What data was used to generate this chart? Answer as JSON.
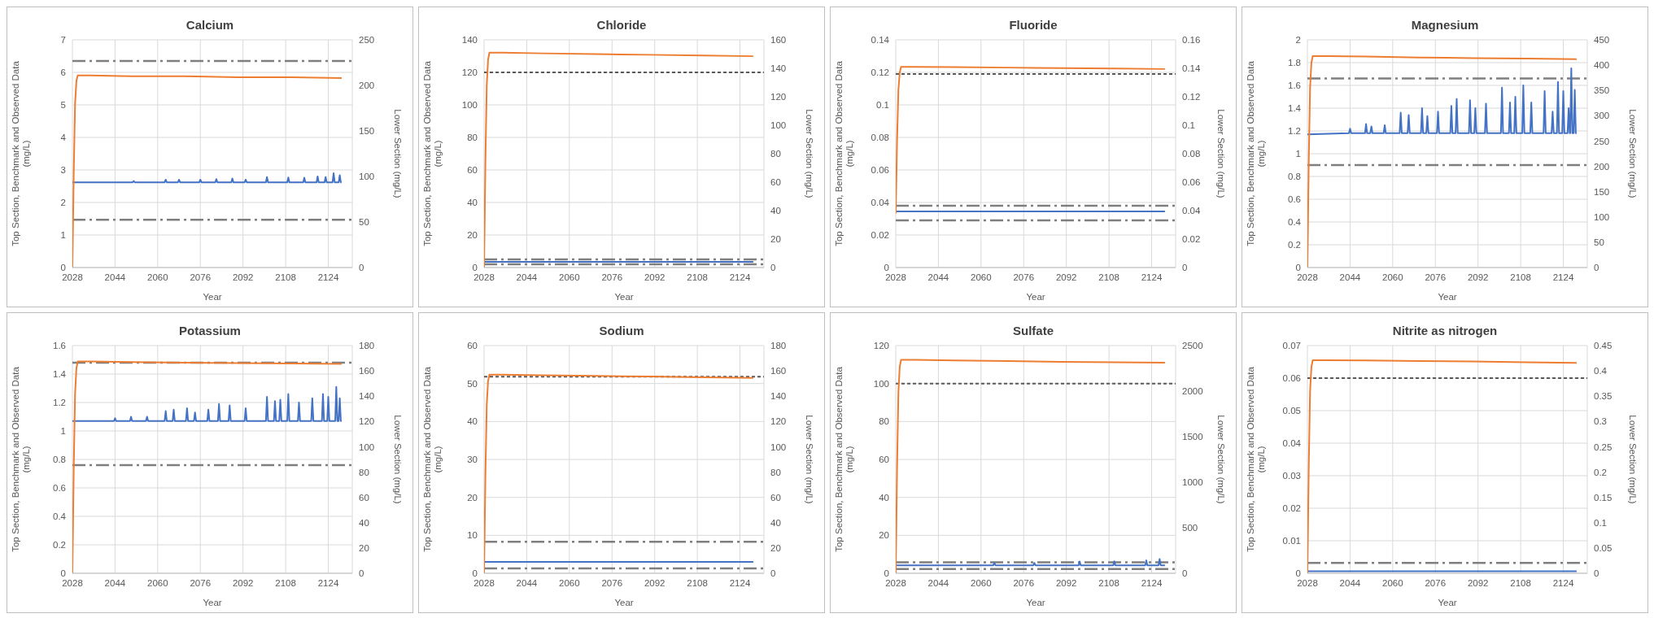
{
  "chart_data": [
    {
      "type": "line",
      "title": "Calcium",
      "xlabel": "Year",
      "ylabel": "Top Section, Benchmark and Observed Data (mg/L)",
      "y2label": "Lower Section (mg/L)",
      "xlim": [
        2028,
        2133
      ],
      "xticks": [
        2028,
        2044,
        2060,
        2076,
        2092,
        2108,
        2124
      ],
      "ylim": [
        0,
        7
      ],
      "yticks": [
        0,
        1,
        2,
        3,
        4,
        5,
        6,
        7
      ],
      "y2lim": [
        0,
        250
      ],
      "y2ticks": [
        0,
        50,
        100,
        150,
        200,
        250
      ],
      "grid": true,
      "series": [
        {
          "color": "#4472c4",
          "x": [
            2028,
            2050.6,
            2051,
            2051.4,
            2062.6,
            2063,
            2063.4,
            2067.6,
            2068,
            2068.4,
            2075.6,
            2076,
            2076.4,
            2081.6,
            2082,
            2082.4,
            2087.6,
            2088,
            2088.4,
            2092.6,
            2093,
            2093.4,
            2100.6,
            2101,
            2101.4,
            2108.6,
            2109,
            2109.4,
            2114.6,
            2115,
            2115.4,
            2119.6,
            2120,
            2120.4,
            2122.6,
            2123,
            2123.4,
            2125.6,
            2126,
            2126.4,
            2127.9,
            2128.3,
            2128.7,
            2129
          ],
          "values": [
            2.62,
            2.62,
            2.66,
            2.62,
            2.62,
            2.7,
            2.62,
            2.62,
            2.7,
            2.62,
            2.62,
            2.7,
            2.62,
            2.62,
            2.72,
            2.62,
            2.62,
            2.74,
            2.62,
            2.62,
            2.7,
            2.62,
            2.62,
            2.78,
            2.62,
            2.62,
            2.77,
            2.62,
            2.62,
            2.76,
            2.62,
            2.62,
            2.8,
            2.62,
            2.62,
            2.78,
            2.62,
            2.62,
            2.9,
            2.62,
            2.62,
            2.84,
            2.62,
            2.62
          ]
        },
        {
          "color": "#ed7d31",
          "axis": "y2",
          "x": [
            2028,
            2028.5,
            2029,
            2029.5,
            2030,
            2035,
            2050,
            2070,
            2090,
            2110,
            2129
          ],
          "values": [
            0,
            105,
            180,
            205,
            211,
            211,
            210,
            210,
            209,
            209,
            208
          ]
        }
      ],
      "ref_lines": [
        {
          "axis": "y",
          "value": 6.35,
          "line_style": "dashed",
          "color": "#7f7f7f"
        },
        {
          "axis": "y",
          "value": 1.47,
          "line_style": "dashed",
          "color": "#7f7f7f"
        }
      ]
    },
    {
      "type": "line",
      "title": "Chloride",
      "xlabel": "Year",
      "ylabel": "Top Section, Benchmark and Observed Data (mg/L)",
      "y2label": "Lower Section (mg/L)",
      "xlim": [
        2028,
        2133
      ],
      "xticks": [
        2028,
        2044,
        2060,
        2076,
        2092,
        2108,
        2124
      ],
      "ylim": [
        0,
        140
      ],
      "yticks": [
        0,
        20,
        40,
        60,
        80,
        100,
        120,
        140
      ],
      "y2lim": [
        0,
        160
      ],
      "y2ticks": [
        0,
        20,
        40,
        60,
        80,
        100,
        120,
        140,
        160
      ],
      "grid": true,
      "series": [
        {
          "color": "#4472c4",
          "x": [
            2028,
            2129
          ],
          "values": [
            3.5,
            3.5
          ]
        },
        {
          "color": "#ed7d31",
          "axis": "y2",
          "x": [
            2028,
            2028.5,
            2029,
            2029.5,
            2030,
            2035,
            2050,
            2070,
            2090,
            2110,
            2129
          ],
          "values": [
            0,
            75,
            128,
            146,
            151,
            151,
            150.5,
            150,
            149.5,
            149,
            148.5
          ]
        }
      ],
      "ref_lines": [
        {
          "axis": "y",
          "value": 120,
          "line_style": "dotted",
          "color": "#595959"
        },
        {
          "axis": "y",
          "value": 5,
          "line_style": "dashed",
          "color": "#7f7f7f"
        },
        {
          "axis": "y",
          "value": 2,
          "line_style": "dashed",
          "color": "#7f7f7f"
        }
      ]
    },
    {
      "type": "line",
      "title": "Fluoride",
      "xlabel": "Year",
      "ylabel": "Top Section, Benchmark and Observed Data (mg/L)",
      "y2label": "Lower Section (mg/L)",
      "xlim": [
        2028,
        2133
      ],
      "xticks": [
        2028,
        2044,
        2060,
        2076,
        2092,
        2108,
        2124
      ],
      "ylim": [
        0,
        0.14
      ],
      "yticks": [
        0,
        0.02,
        0.04,
        0.06,
        0.08,
        0.1,
        0.12,
        0.14
      ],
      "y2lim": [
        0,
        0.16
      ],
      "y2ticks": [
        0,
        0.02,
        0.04,
        0.06,
        0.08,
        0.1,
        0.12,
        0.14,
        0.16
      ],
      "grid": true,
      "series": [
        {
          "color": "#4472c4",
          "x": [
            2028,
            2129
          ],
          "values": [
            0.0345,
            0.0345
          ]
        },
        {
          "color": "#ed7d31",
          "axis": "y2",
          "x": [
            2028,
            2028.5,
            2029,
            2029.5,
            2030,
            2035,
            2050,
            2070,
            2090,
            2110,
            2129
          ],
          "values": [
            0.038,
            0.09,
            0.125,
            0.137,
            0.141,
            0.141,
            0.1408,
            0.1405,
            0.1402,
            0.1398,
            0.1395
          ]
        }
      ],
      "ref_lines": [
        {
          "axis": "y",
          "value": 0.119,
          "line_style": "dotted",
          "color": "#595959"
        },
        {
          "axis": "y",
          "value": 0.038,
          "line_style": "dashed",
          "color": "#7f7f7f"
        },
        {
          "axis": "y",
          "value": 0.029,
          "line_style": "dashed",
          "color": "#7f7f7f"
        }
      ]
    },
    {
      "type": "line",
      "title": "Magnesium",
      "xlabel": "Year",
      "ylabel": "Top Section, Benchmark and Observed Data (mg/L)",
      "y2label": "Lower Section (mg/L)",
      "xlim": [
        2028,
        2133
      ],
      "xticks": [
        2028,
        2044,
        2060,
        2076,
        2092,
        2108,
        2124
      ],
      "ylim": [
        0,
        2
      ],
      "yticks": [
        0,
        0.2,
        0.4,
        0.6,
        0.8,
        1,
        1.2,
        1.4,
        1.6,
        1.8,
        2
      ],
      "y2lim": [
        0,
        450
      ],
      "y2ticks": [
        0,
        50,
        100,
        150,
        200,
        250,
        300,
        350,
        400,
        450
      ],
      "grid": true,
      "series": [
        {
          "color": "#4472c4",
          "x": [
            2028,
            2043.6,
            2044,
            2044.4,
            2049.6,
            2050,
            2050.4,
            2051.6,
            2052,
            2052.4,
            2056.6,
            2057,
            2057.4,
            2062.6,
            2063,
            2063.4,
            2065.6,
            2066,
            2066.4,
            2070.6,
            2071,
            2071.4,
            2072.6,
            2073,
            2073.4,
            2076.6,
            2077,
            2077.4,
            2081.6,
            2082,
            2082.4,
            2083.6,
            2084,
            2084.4,
            2088.6,
            2089,
            2089.4,
            2090.6,
            2091,
            2091.4,
            2094.6,
            2095,
            2095.4,
            2100.6,
            2101,
            2101.4,
            2103.6,
            2104,
            2104.4,
            2105.6,
            2106,
            2106.4,
            2108.6,
            2109,
            2109.4,
            2111.6,
            2112,
            2112.4,
            2116.6,
            2117,
            2117.4,
            2119.6,
            2120,
            2120.4,
            2121.6,
            2122,
            2122.4,
            2123.6,
            2124,
            2124.4,
            2125.6,
            2126,
            2126.4,
            2126.6,
            2127,
            2127.4,
            2127.9,
            2128.3,
            2128.7,
            2129
          ],
          "values": [
            1.17,
            1.18,
            1.22,
            1.18,
            1.18,
            1.26,
            1.18,
            1.18,
            1.24,
            1.18,
            1.18,
            1.25,
            1.18,
            1.18,
            1.36,
            1.18,
            1.18,
            1.34,
            1.18,
            1.18,
            1.4,
            1.18,
            1.18,
            1.33,
            1.18,
            1.18,
            1.37,
            1.18,
            1.18,
            1.42,
            1.18,
            1.18,
            1.48,
            1.18,
            1.18,
            1.47,
            1.18,
            1.18,
            1.4,
            1.18,
            1.18,
            1.44,
            1.18,
            1.18,
            1.58,
            1.18,
            1.18,
            1.45,
            1.18,
            1.18,
            1.5,
            1.18,
            1.18,
            1.6,
            1.18,
            1.18,
            1.45,
            1.18,
            1.18,
            1.55,
            1.18,
            1.18,
            1.37,
            1.18,
            1.18,
            1.63,
            1.18,
            1.18,
            1.55,
            1.18,
            1.18,
            1.4,
            1.18,
            1.18,
            1.75,
            1.18,
            1.18,
            1.56,
            1.18,
            1.18
          ]
        },
        {
          "color": "#ed7d31",
          "axis": "y2",
          "x": [
            2028,
            2028.5,
            2029,
            2029.5,
            2030,
            2035,
            2050,
            2070,
            2090,
            2110,
            2129
          ],
          "values": [
            0,
            210,
            355,
            405,
            418,
            418,
            417,
            415,
            414,
            413,
            412
          ]
        }
      ],
      "ref_lines": [
        {
          "axis": "y",
          "value": 1.66,
          "line_style": "dashed",
          "color": "#7f7f7f"
        },
        {
          "axis": "y",
          "value": 0.9,
          "line_style": "dashed",
          "color": "#7f7f7f"
        }
      ]
    },
    {
      "type": "line",
      "title": "Potassium",
      "xlabel": "Year",
      "ylabel": "Top Section, Benchmark and Observed Data (mg/L)",
      "y2label": "Lower Section (mg/L)",
      "xlim": [
        2028,
        2133
      ],
      "xticks": [
        2028,
        2044,
        2060,
        2076,
        2092,
        2108,
        2124
      ],
      "ylim": [
        0,
        1.6
      ],
      "yticks": [
        0,
        0.2,
        0.4,
        0.6,
        0.8,
        1,
        1.2,
        1.4,
        1.6
      ],
      "y2lim": [
        0,
        180
      ],
      "y2ticks": [
        0,
        20,
        40,
        60,
        80,
        100,
        120,
        140,
        160,
        180
      ],
      "grid": true,
      "series": [
        {
          "color": "#4472c4",
          "x": [
            2028,
            2043.6,
            2044,
            2044.4,
            2049.6,
            2050,
            2050.4,
            2055.6,
            2056,
            2056.4,
            2062.6,
            2063,
            2063.4,
            2065.6,
            2066,
            2066.4,
            2070.6,
            2071,
            2071.4,
            2073.6,
            2074,
            2074.4,
            2078.6,
            2079,
            2079.4,
            2082.6,
            2083,
            2083.4,
            2086.6,
            2087,
            2087.4,
            2092.6,
            2093,
            2093.4,
            2100.6,
            2101,
            2101.4,
            2103.6,
            2104,
            2104.4,
            2105.6,
            2106,
            2106.4,
            2108.6,
            2109,
            2109.4,
            2112.6,
            2113,
            2113.4,
            2117.6,
            2118,
            2118.4,
            2121.6,
            2122,
            2122.4,
            2123.6,
            2124,
            2124.4,
            2126.6,
            2127,
            2127.4,
            2127.9,
            2128.3,
            2128.7,
            2129
          ],
          "values": [
            1.07,
            1.07,
            1.09,
            1.07,
            1.07,
            1.1,
            1.07,
            1.07,
            1.1,
            1.07,
            1.07,
            1.14,
            1.07,
            1.07,
            1.15,
            1.07,
            1.07,
            1.16,
            1.07,
            1.07,
            1.13,
            1.07,
            1.07,
            1.15,
            1.07,
            1.07,
            1.19,
            1.07,
            1.07,
            1.18,
            1.07,
            1.07,
            1.16,
            1.07,
            1.07,
            1.24,
            1.07,
            1.07,
            1.21,
            1.07,
            1.07,
            1.22,
            1.07,
            1.07,
            1.26,
            1.07,
            1.07,
            1.2,
            1.07,
            1.07,
            1.23,
            1.07,
            1.07,
            1.26,
            1.07,
            1.07,
            1.24,
            1.07,
            1.07,
            1.31,
            1.07,
            1.07,
            1.23,
            1.07,
            1.07
          ]
        },
        {
          "color": "#ed7d31",
          "axis": "y2",
          "x": [
            2028,
            2028.5,
            2029,
            2029.5,
            2030,
            2035,
            2050,
            2070,
            2090,
            2110,
            2129
          ],
          "values": [
            0,
            84,
            142,
            162,
            167.5,
            167.5,
            167,
            166.5,
            166.2,
            165.8,
            165.5
          ]
        }
      ],
      "ref_lines": [
        {
          "axis": "y",
          "value": 1.48,
          "line_style": "dashed",
          "color": "#7f7f7f"
        },
        {
          "axis": "y",
          "value": 0.76,
          "line_style": "dashed",
          "color": "#7f7f7f"
        }
      ]
    },
    {
      "type": "line",
      "title": "Sodium",
      "xlabel": "Year",
      "ylabel": "Top Section, Benchmark and Observed Data (mg/L)",
      "y2label": "Lower Section (mg/L)",
      "xlim": [
        2028,
        2133
      ],
      "xticks": [
        2028,
        2044,
        2060,
        2076,
        2092,
        2108,
        2124
      ],
      "ylim": [
        0,
        60
      ],
      "yticks": [
        0,
        10,
        20,
        30,
        40,
        50,
        60
      ],
      "y2lim": [
        0,
        180
      ],
      "y2ticks": [
        0,
        20,
        40,
        60,
        80,
        100,
        120,
        140,
        160,
        180
      ],
      "grid": true,
      "series": [
        {
          "color": "#4472c4",
          "x": [
            2028,
            2129
          ],
          "values": [
            3,
            3
          ]
        },
        {
          "color": "#ed7d31",
          "axis": "y2",
          "x": [
            2028,
            2028.5,
            2029,
            2029.5,
            2030,
            2035,
            2050,
            2070,
            2090,
            2110,
            2129
          ],
          "values": [
            0,
            78,
            133,
            152,
            157,
            157,
            156.5,
            156,
            155.5,
            155,
            154.5
          ]
        }
      ],
      "ref_lines": [
        {
          "axis": "y",
          "value": 51.8,
          "line_style": "dotted",
          "color": "#595959"
        },
        {
          "axis": "y",
          "value": 8.3,
          "line_style": "dashed",
          "color": "#7f7f7f"
        },
        {
          "axis": "y",
          "value": 1.3,
          "line_style": "dashed",
          "color": "#7f7f7f"
        }
      ]
    },
    {
      "type": "line",
      "title": "Sulfate",
      "xlabel": "Year",
      "ylabel": "Top Section, Benchmark and Observed Data (mg/L)",
      "y2label": "Lower Section (mg/L)",
      "xlim": [
        2028,
        2133
      ],
      "xticks": [
        2028,
        2044,
        2060,
        2076,
        2092,
        2108,
        2124
      ],
      "ylim": [
        0,
        120
      ],
      "yticks": [
        0,
        20,
        40,
        60,
        80,
        100,
        120
      ],
      "y2lim": [
        0,
        2500
      ],
      "y2ticks": [
        0,
        500,
        1000,
        1500,
        2000,
        2500
      ],
      "grid": true,
      "series": [
        {
          "color": "#4472c4",
          "x": [
            2028,
            2064.6,
            2065,
            2065.4,
            2079.6,
            2080,
            2080.4,
            2096.6,
            2097,
            2097.4,
            2109.6,
            2110,
            2110.4,
            2121.6,
            2122,
            2122.4,
            2126.6,
            2127,
            2127.4,
            2129
          ],
          "values": [
            4.2,
            4.2,
            5.5,
            4.2,
            4.2,
            5.5,
            4.2,
            4.2,
            6.2,
            4.2,
            4.2,
            6.3,
            4.2,
            4.2,
            6.8,
            4.2,
            4.2,
            7.5,
            4.2,
            4.2
          ]
        },
        {
          "color": "#ed7d31",
          "axis": "y2",
          "x": [
            2028,
            2028.5,
            2029,
            2029.5,
            2030,
            2035,
            2050,
            2070,
            2090,
            2110,
            2129
          ],
          "values": [
            0,
            1170,
            1990,
            2270,
            2344,
            2344,
            2338,
            2330,
            2322,
            2316,
            2312
          ]
        }
      ],
      "ref_lines": [
        {
          "axis": "y",
          "value": 100,
          "line_style": "dotted",
          "color": "#595959"
        },
        {
          "axis": "y",
          "value": 5.8,
          "line_style": "dashed",
          "color": "#7f7f7f"
        },
        {
          "axis": "y",
          "value": 2.3,
          "line_style": "dashed",
          "color": "#7f7f7f"
        }
      ]
    },
    {
      "type": "line",
      "title": "Nitrite as nitrogen",
      "xlabel": "Year",
      "ylabel": "Top Section, Benchmark and Observed Data (mg/L)",
      "y2label": "Lower Section (mg/L)",
      "xlim": [
        2028,
        2133
      ],
      "xticks": [
        2028,
        2044,
        2060,
        2076,
        2092,
        2108,
        2124
      ],
      "ylim": [
        0,
        0.07
      ],
      "yticks": [
        0,
        0.01,
        0.02,
        0.03,
        0.04,
        0.05,
        0.06,
        0.07
      ],
      "y2lim": [
        0,
        0.45
      ],
      "y2ticks": [
        0,
        0.05,
        0.1,
        0.15,
        0.2,
        0.25,
        0.3,
        0.35,
        0.4,
        0.45
      ],
      "grid": true,
      "series": [
        {
          "color": "#4472c4",
          "x": [
            2028,
            2129
          ],
          "values": [
            0.0006,
            0.0006
          ]
        },
        {
          "color": "#ed7d31",
          "axis": "y2",
          "x": [
            2028,
            2028.5,
            2029,
            2029.5,
            2030,
            2035,
            2050,
            2070,
            2090,
            2110,
            2129
          ],
          "values": [
            0,
            0.21,
            0.36,
            0.408,
            0.421,
            0.421,
            0.4205,
            0.4195,
            0.4185,
            0.417,
            0.416
          ]
        }
      ],
      "ref_lines": [
        {
          "axis": "y",
          "value": 0.06,
          "line_style": "dotted",
          "color": "#595959"
        },
        {
          "axis": "y",
          "value": 0.0032,
          "line_style": "dashed",
          "color": "#7f7f7f"
        }
      ]
    }
  ]
}
